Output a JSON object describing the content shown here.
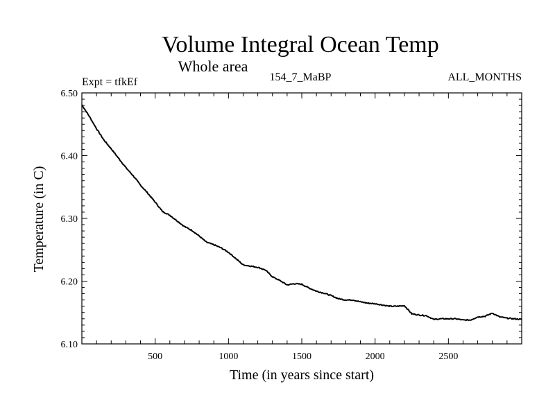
{
  "chart_data": {
    "type": "line",
    "title": "Volume Integral Ocean Temp",
    "subtitle": "Whole area",
    "annotations": {
      "experiment": "Expt = tfkEf",
      "run": "154_7_MaBP",
      "period": "ALL_MONTHS"
    },
    "xlabel": "Time (in years since start)",
    "ylabel": "Temperature (in C)",
    "xlim": [
      0,
      3000
    ],
    "ylim": [
      6.1,
      6.5
    ],
    "x_ticks": [
      500,
      1000,
      1500,
      2000,
      2500
    ],
    "x_tick_labels": [
      "500",
      "1000",
      "1500",
      "2000",
      "2500"
    ],
    "y_ticks": [
      6.1,
      6.2,
      6.3,
      6.4,
      6.5
    ],
    "y_tick_labels": [
      "6.10",
      "6.20",
      "6.30",
      "6.40",
      "6.50"
    ],
    "grid": false,
    "series": [
      {
        "x": [
          0,
          50,
          100,
          150,
          200,
          250,
          300,
          350,
          400,
          450,
          500,
          550,
          600,
          650,
          700,
          750,
          800,
          850,
          900,
          950,
          1000,
          1050,
          1100,
          1150,
          1200,
          1250,
          1300,
          1350,
          1400,
          1450,
          1500,
          1550,
          1600,
          1650,
          1700,
          1750,
          1800,
          1850,
          1900,
          1950,
          2000,
          2050,
          2100,
          2150,
          2200,
          2250,
          2300,
          2350,
          2400,
          2450,
          2500,
          2550,
          2600,
          2650,
          2700,
          2750,
          2800,
          2850,
          2900,
          2950,
          3000
        ],
        "values": [
          6.481,
          6.463,
          6.443,
          6.425,
          6.411,
          6.396,
          6.381,
          6.368,
          6.353,
          6.34,
          6.326,
          6.311,
          6.305,
          6.296,
          6.287,
          6.281,
          6.272,
          6.262,
          6.258,
          6.253,
          6.246,
          6.236,
          6.226,
          6.224,
          6.222,
          6.218,
          6.207,
          6.201,
          6.194,
          6.196,
          6.195,
          6.189,
          6.184,
          6.181,
          6.177,
          6.172,
          6.17,
          6.17,
          6.167,
          6.165,
          6.164,
          6.162,
          6.16,
          6.16,
          6.161,
          6.148,
          6.146,
          6.145,
          6.139,
          6.14,
          6.14,
          6.14,
          6.138,
          6.138,
          6.143,
          6.144,
          6.149,
          6.143,
          6.141,
          6.14,
          6.139
        ]
      }
    ]
  }
}
